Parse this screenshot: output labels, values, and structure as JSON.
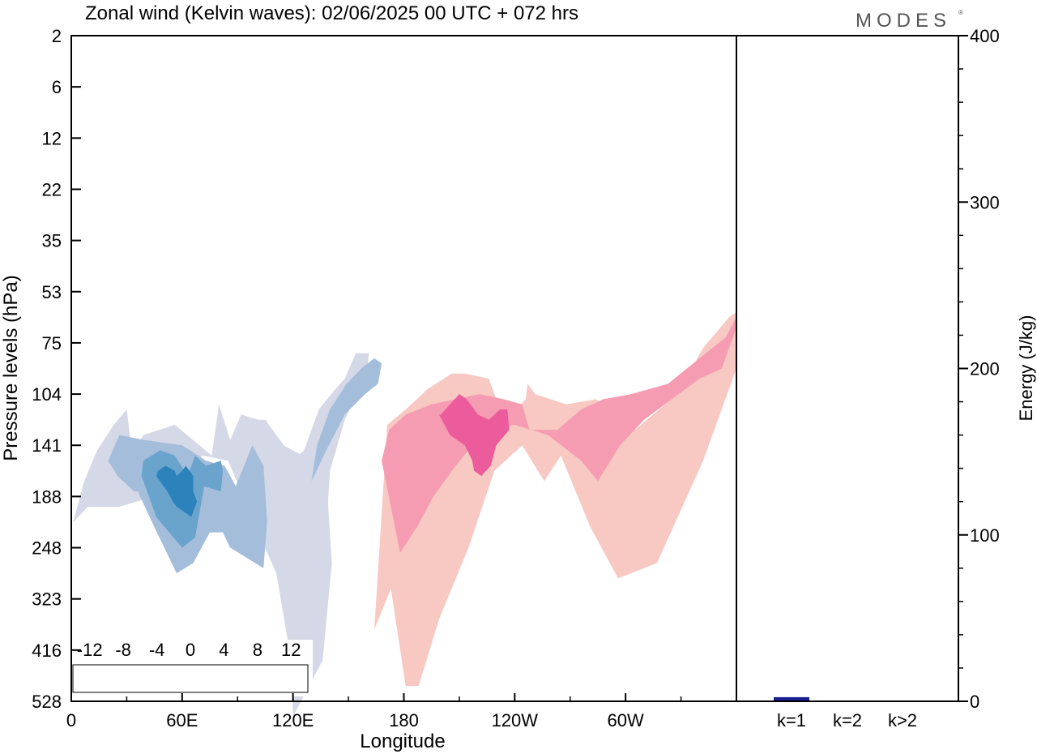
{
  "title": "Zonal wind (Kelvin waves):  02/06/2025  00 UTC  + 072 hrs",
  "logo": "MODES",
  "colors": {
    "neg": [
      "#143a52",
      "#0b5f8a",
      "#2c82bb",
      "#6aa3cc",
      "#a4bddb",
      "#d4d8e7"
    ],
    "pos": [
      "#f8c8c2",
      "#f59cb2",
      "#ec5c9c",
      "#c8177f",
      "#960d78",
      "#5a0466"
    ],
    "zero": "#ffffff",
    "bar": "#191f8c"
  },
  "chart_data": [
    {
      "type": "heatmap",
      "title": "Zonal wind (Kelvin waves):  02/06/2025  00 UTC  + 072 hrs",
      "xlabel": "Longitude",
      "ylabel": "Pressure levels (hPa)",
      "x_ticks": [
        "0",
        "60E",
        "120E",
        "180",
        "120W",
        "60W"
      ],
      "x_tick_lon": [
        0,
        60,
        120,
        180,
        240,
        300
      ],
      "xlim": [
        0,
        360
      ],
      "y_ticks": [
        "2",
        "6",
        "12",
        "22",
        "35",
        "53",
        "75",
        "104",
        "141",
        "188",
        "248",
        "323",
        "416",
        "528"
      ],
      "colorbar": {
        "labels": [
          "-12",
          "-8",
          "-4",
          "0",
          "4",
          "8",
          "12"
        ],
        "levels": [
          -14,
          -12,
          -10,
          -8,
          -6,
          -4,
          -2,
          2,
          4,
          6,
          8,
          10,
          12,
          14
        ]
      },
      "features": [
        {
          "level": -2,
          "lon": [
            1,
            9,
            26,
            45,
            60,
            71,
            85,
            95,
            111,
            119,
            120,
            136,
            141,
            138,
            138,
            125,
            115,
            105,
            101,
            92,
            86,
            80,
            76,
            56,
            39,
            33,
            30,
            23,
            14,
            7,
            1
          ],
          "lev": [
            9.5,
            9.2,
            9.2,
            9.0,
            8.6,
            8.2,
            8.3,
            9.2,
            10.5,
            12.2,
            13.3,
            12.2,
            10.3,
            8.6,
            8.0,
            8.2,
            8.0,
            7.5,
            7.5,
            7.4,
            7.9,
            7.2,
            8.2,
            7.6,
            7.8,
            8.2,
            7.3,
            7.6,
            8.1,
            8.7,
            9.5
          ]
        },
        {
          "level": -4,
          "lon": [
            20,
            25,
            34,
            36,
            45,
            57,
            66,
            75,
            82,
            86,
            104,
            106,
            104,
            98,
            89,
            83,
            73,
            60,
            40,
            26,
            20
          ],
          "lev": [
            8.3,
            8.6,
            8.9,
            8.9,
            9.6,
            10.5,
            10.3,
            9.7,
            9.7,
            10.0,
            10.4,
            9.5,
            8.4,
            8.0,
            8.8,
            8.4,
            8.3,
            8.0,
            7.9,
            7.8,
            8.3
          ]
        },
        {
          "level": -6,
          "lon": [
            38,
            46,
            60,
            67,
            72,
            81,
            82,
            81,
            73,
            67,
            63,
            56,
            48,
            39,
            38
          ],
          "lev": [
            8.6,
            9.4,
            10.0,
            9.8,
            8.8,
            8.9,
            8.5,
            8.3,
            8.4,
            8.2,
            8.6,
            8.2,
            8.1,
            8.3,
            8.6
          ]
        },
        {
          "level": -8,
          "lon": [
            46,
            52,
            55,
            57,
            61,
            65,
            68,
            66,
            66,
            62,
            60,
            57,
            56,
            51,
            47,
            46
          ],
          "lev": [
            8.6,
            8.9,
            9.1,
            9.2,
            9.3,
            9.4,
            9.1,
            8.9,
            8.6,
            8.4,
            8.5,
            8.6,
            8.5,
            8.4,
            8.5,
            8.6
          ]
        },
        {
          "level": -2,
          "lon": [
            117,
            126,
            131,
            135,
            140,
            148,
            160,
            161,
            154,
            148,
            143,
            134,
            126,
            120,
            117
          ],
          "lev": [
            8.6,
            10.3,
            11.3,
            11.3,
            8.5,
            7.5,
            6.6,
            6.2,
            6.2,
            6.7,
            6.9,
            7.3,
            8.1,
            8.3,
            8.6
          ]
        },
        {
          "level": -4,
          "lon": [
            130,
            138,
            148,
            159,
            166,
            168,
            164,
            157,
            149,
            140,
            133,
            130
          ],
          "lev": [
            8.7,
            8.1,
            7.4,
            7.0,
            6.8,
            6.4,
            6.3,
            6.5,
            6.8,
            7.3,
            8.0,
            8.7
          ]
        },
        {
          "level": 2,
          "lon": [
            164,
            173,
            181,
            188,
            199,
            215,
            229,
            244,
            256,
            265,
            281,
            296,
            317,
            342,
            360,
            360,
            356,
            342,
            328,
            305,
            284,
            268,
            251,
            247,
            246,
            238,
            231,
            226,
            213,
            206,
            193,
            181,
            171,
            164
          ],
          "lev": [
            11.6,
            10.8,
            12.7,
            12.7,
            11.4,
            10.0,
            8.5,
            8.0,
            8.7,
            8.2,
            9.6,
            10.6,
            10.3,
            8.3,
            6.5,
            5.4,
            5.5,
            6.1,
            7.0,
            7.7,
            7.1,
            7.2,
            7.0,
            6.8,
            7.1,
            7.4,
            7.2,
            6.7,
            6.6,
            6.6,
            6.9,
            7.3,
            7.6,
            11.6
          ]
        },
        {
          "level": 4,
          "lon": [
            168,
            178,
            187,
            196,
            208,
            217,
            226,
            240,
            258,
            276,
            285,
            297,
            310,
            325,
            340,
            352,
            360,
            360,
            354,
            340,
            323,
            303,
            288,
            276,
            263,
            248,
            244,
            234,
            221,
            208,
            195,
            181,
            172,
            168
          ],
          "lev": [
            8.3,
            10.1,
            9.6,
            9.0,
            8.4,
            8.0,
            7.7,
            7.6,
            7.8,
            8.3,
            8.7,
            8.0,
            7.5,
            7.1,
            6.7,
            6.5,
            5.7,
            5.5,
            5.9,
            6.3,
            6.8,
            7.0,
            7.1,
            7.3,
            7.7,
            7.7,
            7.2,
            7.1,
            7.0,
            7.1,
            7.2,
            7.4,
            7.7,
            8.3
          ]
        },
        {
          "level": 6,
          "lon": [
            199,
            205,
            213,
            217,
            218,
            222,
            227,
            230,
            237,
            236,
            232,
            226,
            220,
            214,
            210,
            205,
            200,
            199
          ],
          "lev": [
            7.4,
            7.8,
            8.0,
            8.3,
            8.5,
            8.6,
            8.4,
            8.0,
            7.7,
            7.3,
            7.3,
            7.5,
            7.4,
            7.1,
            7.0,
            7.2,
            7.4,
            7.4
          ]
        }
      ]
    },
    {
      "type": "bar",
      "categories": [
        "k=1",
        "k=2",
        "k>2"
      ],
      "values": [
        2.5,
        0.3,
        0.5
      ],
      "ylabel": "Energy (J/kg)",
      "ylim": [
        0,
        400
      ],
      "y_ticks": [
        "0",
        "100",
        "200",
        "300",
        "400"
      ],
      "y_tick_values": [
        0,
        100,
        200,
        300,
        400
      ]
    }
  ]
}
